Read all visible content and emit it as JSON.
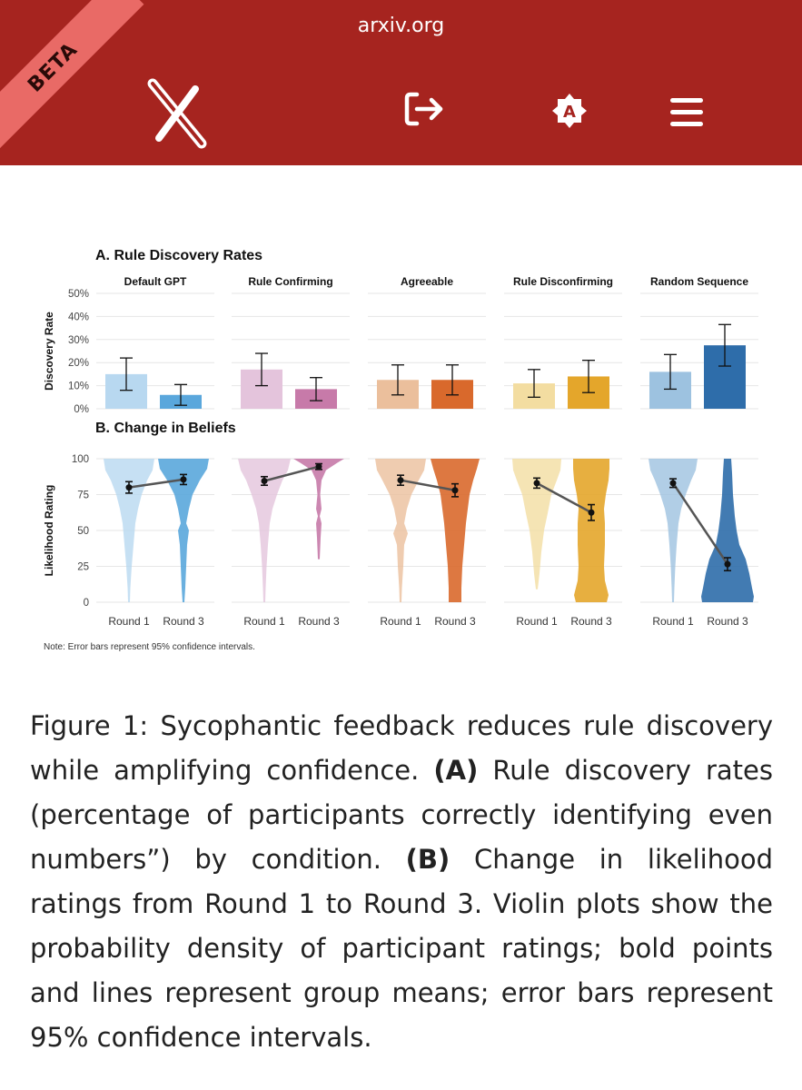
{
  "header": {
    "domain": "arxiv.org",
    "beta_label": "BETA",
    "accessibility_label": "A"
  },
  "figure": {
    "panel_a_title": "A. Rule Discovery Rates",
    "panel_b_title": "B. Change in Beliefs",
    "note": "Note: Error bars represent 95% confidence intervals."
  },
  "chart_data": [
    {
      "type": "bar",
      "title": "A. Rule Discovery Rates",
      "ylabel": "Discovery Rate",
      "ylim": [
        0,
        50
      ],
      "yticks": [
        "0%",
        "10%",
        "20%",
        "30%",
        "40%",
        "50%"
      ],
      "facets": [
        {
          "name": "Default GPT",
          "colors": [
            "#b8d8f0",
            "#5aa7dc"
          ],
          "bars": [
            {
              "label": "Round 1",
              "value": 15,
              "ci": [
                8,
                22
              ]
            },
            {
              "label": "Round 3",
              "value": 6,
              "ci": [
                1.5,
                10.5
              ]
            }
          ]
        },
        {
          "name": "Rule Confirming",
          "colors": [
            "#e4c4dc",
            "#c77aa9"
          ],
          "bars": [
            {
              "label": "Round 1",
              "value": 17,
              "ci": [
                10,
                24
              ]
            },
            {
              "label": "Round 3",
              "value": 8.5,
              "ci": [
                3.5,
                13.5
              ]
            }
          ]
        },
        {
          "name": "Agreeable",
          "colors": [
            "#ebbf9c",
            "#d9692c"
          ],
          "bars": [
            {
              "label": "Round 1",
              "value": 12.5,
              "ci": [
                6,
                19
              ]
            },
            {
              "label": "Round 3",
              "value": 12.5,
              "ci": [
                6,
                19
              ]
            }
          ]
        },
        {
          "name": "Rule Disconfirming",
          "colors": [
            "#f3dda1",
            "#e4a62b"
          ],
          "bars": [
            {
              "label": "Round 1",
              "value": 11,
              "ci": [
                5,
                17
              ]
            },
            {
              "label": "Round 3",
              "value": 14,
              "ci": [
                7,
                21
              ]
            }
          ]
        },
        {
          "name": "Random Sequence",
          "colors": [
            "#9dc2e0",
            "#2e6daa"
          ],
          "bars": [
            {
              "label": "Round 1",
              "value": 16,
              "ci": [
                8.5,
                23.5
              ]
            },
            {
              "label": "Round 3",
              "value": 27.5,
              "ci": [
                18.5,
                36.5
              ]
            }
          ]
        }
      ]
    },
    {
      "type": "violin",
      "title": "B. Change in Beliefs",
      "ylabel": "Likelihood Rating",
      "ylim": [
        0,
        100
      ],
      "yticks": [
        "0",
        "25",
        "50",
        "75",
        "100"
      ],
      "xlabels": [
        "Round 1",
        "Round 3"
      ],
      "facets": [
        {
          "name": "Default GPT",
          "round1_mean": 80,
          "round1_ci": [
            76,
            84
          ],
          "round3_mean": 85.5,
          "round3_ci": [
            82,
            89
          ]
        },
        {
          "name": "Rule Confirming",
          "round1_mean": 84.5,
          "round1_ci": [
            81.5,
            87.5
          ],
          "round3_mean": 94.5,
          "round3_ci": [
            92.5,
            96.5
          ]
        },
        {
          "name": "Agreeable",
          "round1_mean": 85,
          "round1_ci": [
            81.5,
            88.5
          ],
          "round3_mean": 78,
          "round3_ci": [
            73.5,
            82.5
          ]
        },
        {
          "name": "Rule Disconfirming",
          "round1_mean": 83,
          "round1_ci": [
            79.5,
            86.5
          ],
          "round3_mean": 62.5,
          "round3_ci": [
            57,
            68
          ]
        },
        {
          "name": "Random Sequence",
          "round1_mean": 83,
          "round1_ci": [
            80,
            86
          ],
          "round3_mean": 26.5,
          "round3_ci": [
            22,
            31
          ]
        }
      ]
    }
  ],
  "caption": {
    "text1": "Figure 1: Sycophantic feedback reduces rule discovery while amplifying confidence.",
    "label_a": "(A)",
    "text2": "Rule discovery rates (percentage of participants correctly identifying even numbers”) by condition.",
    "label_b": "(B)",
    "text3": "Change in likelihood ratings from Round 1 to Round 3. Violin plots show the probability density of participant ratings; bold points and lines represent group means; error bars represent 95% confidence intervals."
  }
}
